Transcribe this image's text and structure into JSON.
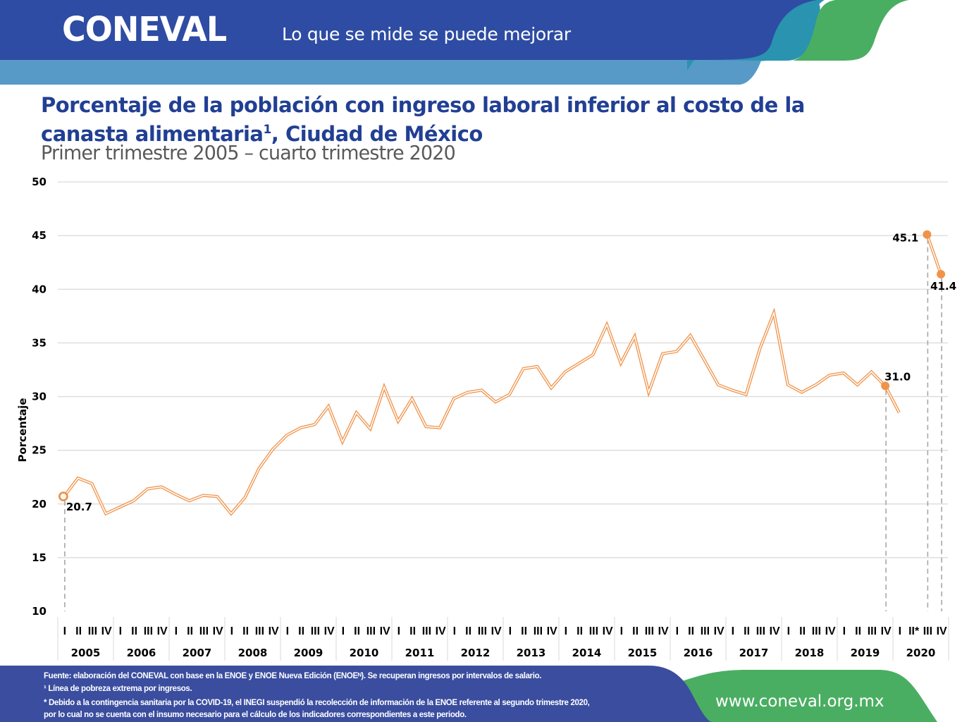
{
  "header": {
    "logo": "CONEVAL",
    "slogan": "Lo que se mide se puede mejorar",
    "colors": {
      "dark_blue": "#2e4ca3",
      "light_blue": "#5799c7",
      "teal": "#2a93b0",
      "green": "#4aae62"
    }
  },
  "title": {
    "line1": "Porcentaje de la población con ingreso laboral inferior al costo de la",
    "line2_main": "canasta alimentaria",
    "line2_sup": "1",
    "line2_rest": ", Ciudad de México",
    "subtitle": "Primer trimestre 2005 – cuarto trimestre 2020"
  },
  "chart_data": {
    "type": "line",
    "title": "Porcentaje de la población con ingreso laboral inferior al costo de la canasta alimentaria, Ciudad de México",
    "subtitle": "Primer trimestre 2005 – cuarto trimestre 2020",
    "xlabel": "",
    "ylabel": "Porcentaje",
    "ylim": [
      10,
      50
    ],
    "yticks": [
      10,
      15,
      20,
      25,
      30,
      35,
      40,
      45,
      50
    ],
    "grid": true,
    "legend": "none",
    "line_color": "#f0934a",
    "years": [
      "2005",
      "2006",
      "2007",
      "2008",
      "2009",
      "2010",
      "2011",
      "2012",
      "2013",
      "2014",
      "2015",
      "2016",
      "2017",
      "2018",
      "2019",
      "2020"
    ],
    "quarter_labels": [
      "I",
      "II",
      "III",
      "IV"
    ],
    "quarter_labels_2020": [
      "I",
      "II*",
      "III",
      "IV"
    ],
    "series": [
      {
        "name": "Porcentaje ENOE",
        "values": [
          20.7,
          22.4,
          21.9,
          19.1,
          19.7,
          20.3,
          21.4,
          21.6,
          20.9,
          20.3,
          20.8,
          20.7,
          19.1,
          20.6,
          23.3,
          25.1,
          26.4,
          27.1,
          27.4,
          29.1,
          25.8,
          28.5,
          27.0,
          30.9,
          27.7,
          29.8,
          27.2,
          27.1,
          29.8,
          30.4,
          30.6,
          29.5,
          30.2,
          32.6,
          32.8,
          30.8,
          32.3,
          33.1,
          33.9,
          36.7,
          33.1,
          35.6,
          30.4,
          34.0,
          34.2,
          35.7,
          33.4,
          31.1,
          30.6,
          30.2,
          34.5,
          37.8,
          31.1,
          30.4,
          31.1,
          32.0,
          32.2,
          31.1,
          32.3,
          31.0,
          28.5,
          null,
          null,
          null
        ]
      },
      {
        "name": "Porcentaje ENOEN",
        "values": [
          null,
          null,
          null,
          null,
          null,
          null,
          null,
          null,
          null,
          null,
          null,
          null,
          null,
          null,
          null,
          null,
          null,
          null,
          null,
          null,
          null,
          null,
          null,
          null,
          null,
          null,
          null,
          null,
          null,
          null,
          null,
          null,
          null,
          null,
          null,
          null,
          null,
          null,
          null,
          null,
          null,
          null,
          null,
          null,
          null,
          null,
          null,
          null,
          null,
          null,
          null,
          null,
          null,
          null,
          null,
          null,
          null,
          null,
          null,
          null,
          null,
          null,
          45.1,
          41.4
        ]
      }
    ],
    "annotations": [
      {
        "period": "2005-I",
        "label": "20.7",
        "marker": "hollow"
      },
      {
        "period": "2019-IV",
        "label": "31.0",
        "marker": "filled"
      },
      {
        "period": "2020-III",
        "label": "45.1",
        "marker": "filled"
      },
      {
        "period": "2020-IV",
        "label": "41.4",
        "marker": "filled"
      }
    ]
  },
  "footer": {
    "source": "Fuente: elaboración del CONEVAL  con base en la ENOE y ENOE Nueva Edición (ENOEᴺ).  Se recuperan ingresos por intervalos de salario.",
    "note1": "¹ Línea de pobreza extrema por ingresos.",
    "note2_line1": "* Debido a la  contingencia sanitaria por la COVID-19,  el INEGI suspendió la recolección  de información de la ENOE referente al segundo trimestre 2020,",
    "note2_line2": "por lo cual no se cuenta con el insumo necesario para el cálculo de los indicadores correspondientes a este periodo.",
    "url": "www.coneval.org.mx"
  }
}
